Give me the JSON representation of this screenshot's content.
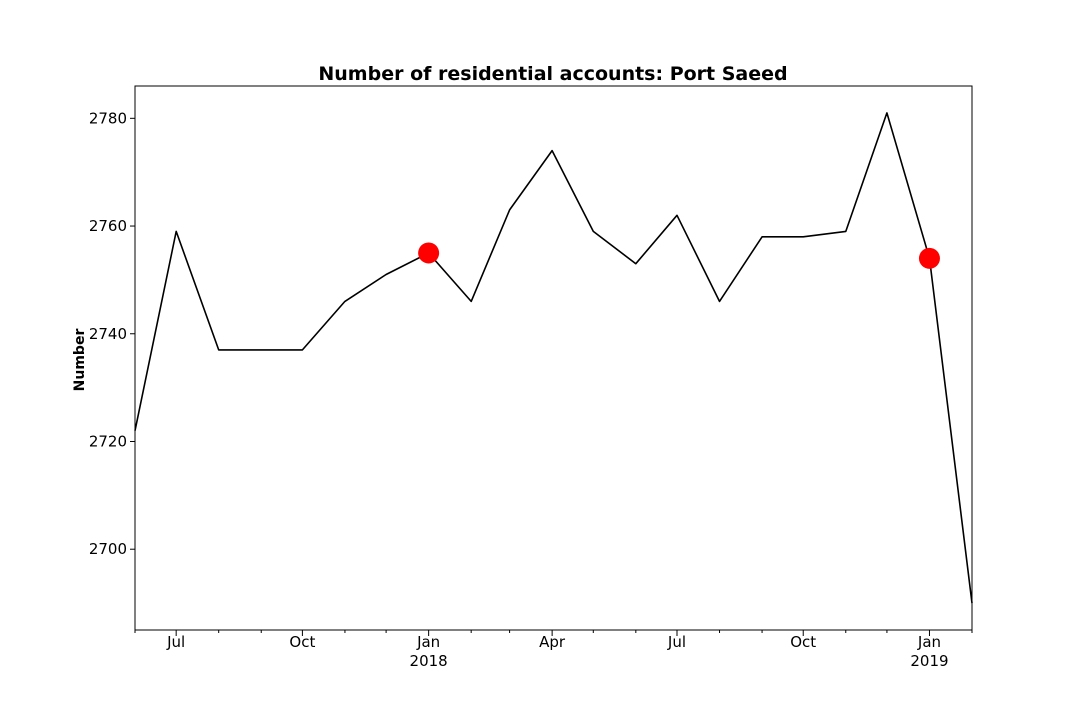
{
  "chart_data": {
    "type": "line",
    "title": "Number of residential accounts: Port Saeed",
    "xlabel": "",
    "ylabel": "Number",
    "ylim": [
      2685,
      2786
    ],
    "xlim": [
      "2017-05-31",
      "2019-01-31"
    ],
    "grid": false,
    "legend": "none",
    "line_color": "#000000",
    "highlight_color": "#ff0000",
    "series": [
      {
        "x": [
          "2017-05-31",
          "2017-06-30",
          "2017-07-31",
          "2017-08-31",
          "2017-09-30",
          "2017-10-31",
          "2017-11-30",
          "2017-12-31",
          "2018-01-31",
          "2018-02-28",
          "2018-03-31",
          "2018-04-30",
          "2018-05-31",
          "2018-06-30",
          "2018-07-31",
          "2018-08-31",
          "2018-09-30",
          "2018-10-31",
          "2018-11-30",
          "2018-12-31",
          "2019-01-31"
        ],
        "y": [
          2722,
          2759,
          2737,
          2737,
          2737,
          2746,
          2751,
          2755,
          2746,
          2763,
          2774,
          2759,
          2753,
          2762,
          2746,
          2758,
          2758,
          2759,
          2781,
          2754,
          2690
        ]
      }
    ],
    "highlights": [
      {
        "x": "2017-12-31",
        "y": 2755
      },
      {
        "x": "2018-12-31",
        "y": 2754
      }
    ],
    "yticks": [
      2700,
      2720,
      2740,
      2760,
      2780
    ],
    "xticks_major": [
      {
        "x": "2017-06-30",
        "label": "Jul",
        "sublabel": ""
      },
      {
        "x": "2017-09-30",
        "label": "Oct",
        "sublabel": ""
      },
      {
        "x": "2017-12-31",
        "label": "Jan",
        "sublabel": "2018"
      },
      {
        "x": "2018-03-31",
        "label": "Apr",
        "sublabel": ""
      },
      {
        "x": "2018-06-30",
        "label": "Jul",
        "sublabel": ""
      },
      {
        "x": "2018-09-30",
        "label": "Oct",
        "sublabel": ""
      },
      {
        "x": "2018-12-31",
        "label": "Jan",
        "sublabel": "2019"
      }
    ],
    "xticks_minor": [
      "2017-05-31",
      "2017-07-31",
      "2017-08-31",
      "2017-10-31",
      "2017-11-30",
      "2018-01-31",
      "2018-02-28",
      "2018-04-30",
      "2018-05-31",
      "2018-07-31",
      "2018-08-31",
      "2018-10-31",
      "2018-11-30",
      "2019-01-31"
    ]
  }
}
